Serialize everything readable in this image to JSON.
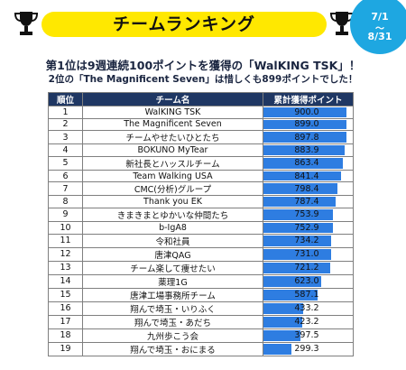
{
  "banner": {
    "title": "チームランキング"
  },
  "period": {
    "start": "7/1",
    "sep": "〜",
    "end": "8/31"
  },
  "headline": "第1位は9週連続100ポイントを獲得の「WalKING TSK」！",
  "subline": "2位の「The Magnificent Seven」は惜しくも899ポイントでした！",
  "table": {
    "headers": [
      "順位",
      "チーム名",
      "累計獲得ポイント"
    ],
    "max_points": 900,
    "rows": [
      {
        "rank": "1",
        "name": "WalKING TSK",
        "points": "900.0",
        "value": 900.0
      },
      {
        "rank": "2",
        "name": "The Magnificent Seven",
        "points": "899.0",
        "value": 899.0
      },
      {
        "rank": "3",
        "name": "チームやせたいひとたち",
        "points": "897.8",
        "value": 897.8
      },
      {
        "rank": "4",
        "name": "BOKUNO MyTear",
        "points": "883.9",
        "value": 883.9
      },
      {
        "rank": "5",
        "name": "新社長とハッスルチーム",
        "points": "863.4",
        "value": 863.4
      },
      {
        "rank": "6",
        "name": "Team Walking USA",
        "points": "841.4",
        "value": 841.4
      },
      {
        "rank": "7",
        "name": "CMC(分析)グループ",
        "points": "798.4",
        "value": 798.4
      },
      {
        "rank": "8",
        "name": "Thank you EK",
        "points": "787.4",
        "value": 787.4
      },
      {
        "rank": "9",
        "name": "きまきまとゆかいな仲間たち",
        "points": "753.9",
        "value": 753.9
      },
      {
        "rank": "10",
        "name": "b-IgA8",
        "points": "752.9",
        "value": 752.9
      },
      {
        "rank": "11",
        "name": "令和社員",
        "points": "734.2",
        "value": 734.2
      },
      {
        "rank": "12",
        "name": "唐津QAG",
        "points": "731.0",
        "value": 731.0
      },
      {
        "rank": "13",
        "name": "チーム楽して痩せたい",
        "points": "721.2",
        "value": 721.2
      },
      {
        "rank": "14",
        "name": "薬理1G",
        "points": "623.0",
        "value": 623.0
      },
      {
        "rank": "15",
        "name": "唐津工場事務所チーム",
        "points": "587.1",
        "value": 587.1
      },
      {
        "rank": "16",
        "name": "翔んで埼玉・いりふく",
        "points": "433.2",
        "value": 433.2
      },
      {
        "rank": "17",
        "name": "翔んで埼玉・あだち",
        "points": "423.2",
        "value": 423.2
      },
      {
        "rank": "18",
        "name": "九州歩こう会",
        "points": "397.5",
        "value": 397.5
      },
      {
        "rank": "19",
        "name": "翔んで埼玉・おにまる",
        "points": "299.3",
        "value": 299.3
      }
    ]
  },
  "colors": {
    "bar": "#2e7de1",
    "header_bg": "#1f3763",
    "banner_bg": "#ffe800",
    "badge_bg": "#1ea7e1"
  }
}
